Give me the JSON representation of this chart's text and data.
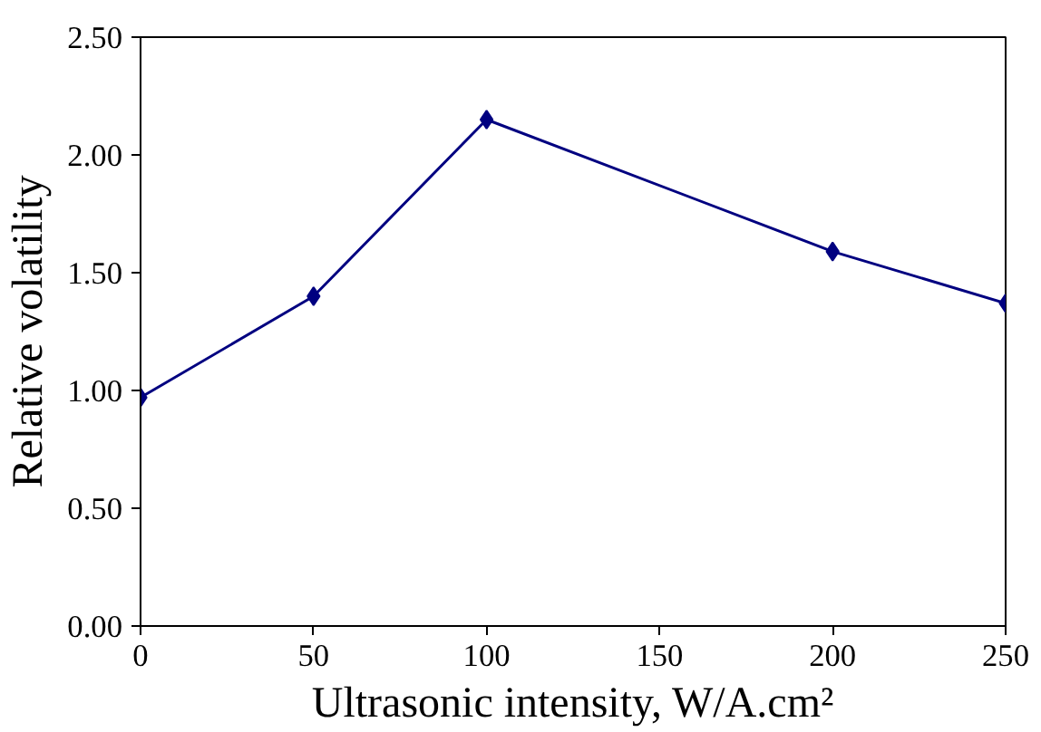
{
  "chart_data": {
    "type": "line",
    "xlabel": "Ultrasonic intensity, W/A.cm²",
    "ylabel": "Relative volatility",
    "x": [
      0,
      50,
      100,
      200,
      250
    ],
    "series": [
      {
        "color": "#000080",
        "values": [
          0.97,
          1.4,
          2.15,
          1.59,
          1.37
        ]
      }
    ],
    "xlim": [
      0,
      250
    ],
    "xticks": [
      0,
      50,
      100,
      150,
      200,
      250
    ],
    "ylim": [
      0,
      2.5
    ],
    "yticks": [
      {
        "value": 0,
        "label": "0.00"
      },
      {
        "value": 0.5,
        "label": "0.50"
      },
      {
        "value": 1,
        "label": "1.00"
      },
      {
        "value": 1.5,
        "label": "1.50"
      },
      {
        "value": 2,
        "label": "2.00"
      },
      {
        "value": 2.5,
        "label": "2.50"
      }
    ],
    "marker": "diamond",
    "line_style": "solid",
    "grid": false
  }
}
